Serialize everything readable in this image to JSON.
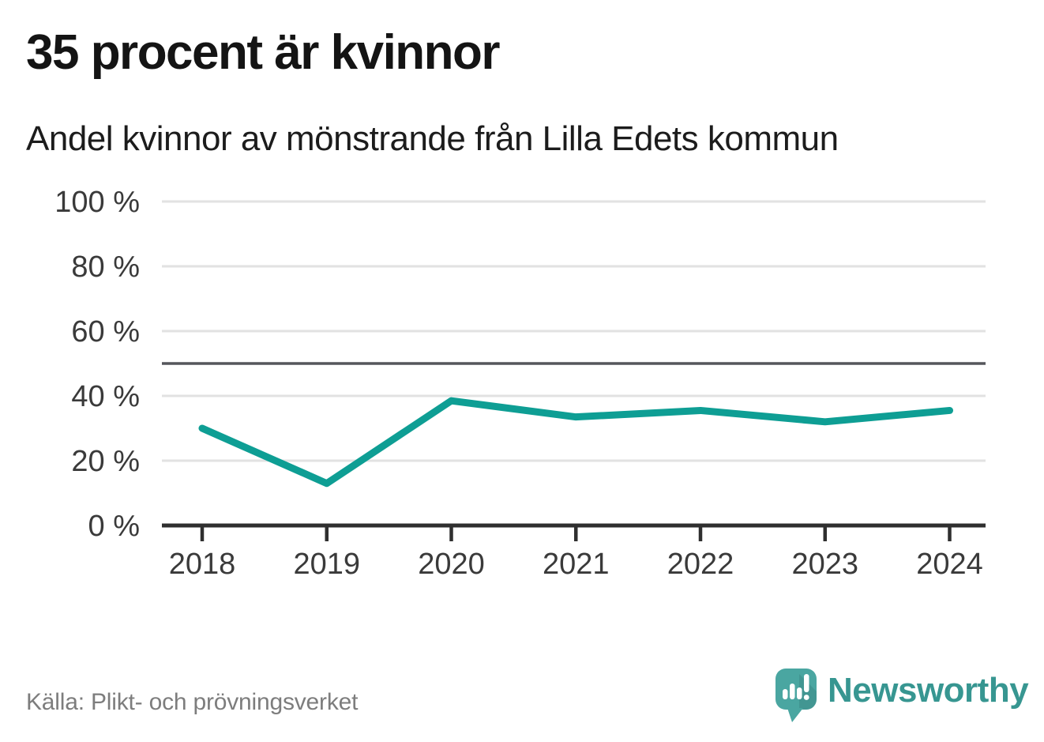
{
  "chart_data": {
    "type": "line",
    "title": "35 procent är kvinnor",
    "subtitle": "Andel kvinnor av mönstrande från Lilla Edets kommun",
    "x": [
      "2018",
      "2019",
      "2020",
      "2021",
      "2022",
      "2023",
      "2024"
    ],
    "values": [
      30,
      13,
      38.5,
      33.5,
      35.5,
      32,
      35.5
    ],
    "unit": "%",
    "ylim": [
      0,
      100
    ],
    "yticks": [
      100,
      80,
      60,
      40,
      20,
      0
    ],
    "ytick_suffix": " %",
    "reference_line": 50,
    "grid": true,
    "legend": false,
    "source": "Källa: Plikt- och prövningsverket",
    "colors": {
      "line": "#0e9e94",
      "reference_line": "#55565b",
      "grid": "#e2e2e2",
      "axis": "#2f2f2f",
      "tick_label": "#3a3a3a"
    }
  },
  "footer": {
    "logo_text": "Newsworthy",
    "logo_icon": "speech-bubble-bar-chart-icon",
    "logo_color": "#4aa6a1",
    "logo_text_color": "#379691"
  }
}
